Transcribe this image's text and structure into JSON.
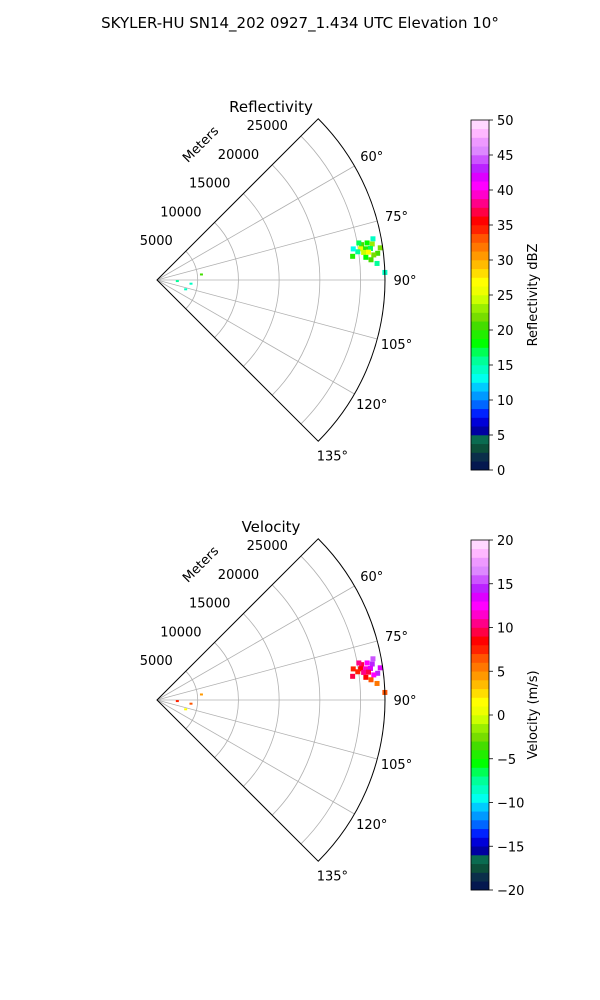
{
  "suptitle": "SKYLER-HU  SN14_202  0927_1.434 UTC Elevation 10°",
  "chart_data": [
    {
      "type": "polar-wedge",
      "title": "Reflectivity",
      "radial_label": "Meters",
      "radial_ticks": [
        5000,
        10000,
        15000,
        20000,
        25000
      ],
      "radial_tick_labels": [
        "5000",
        "10000",
        "15000",
        "20000",
        "25000"
      ],
      "rmax": 28000,
      "angle_range_deg": [
        45,
        135
      ],
      "angle_ticks_deg": [
        60,
        75,
        90,
        105,
        120,
        135
      ],
      "angle_tick_labels": [
        "60°",
        "75°",
        "90°",
        "105°",
        "120°",
        "135°"
      ],
      "grid": true,
      "colorbar": {
        "label": "Reflectivity dBZ",
        "range": [
          0,
          50
        ],
        "ticks": [
          0,
          5,
          10,
          15,
          20,
          25,
          30,
          35,
          40,
          45,
          50
        ],
        "tick_labels": [
          "0",
          "5",
          "10",
          "15",
          "20",
          "25",
          "30",
          "35",
          "40",
          "45",
          "50"
        ],
        "colors": [
          "#04184f",
          "#0a2e4a",
          "#0c4f3a",
          "#0a6b50",
          "#0000a0",
          "#0000d8",
          "#0022ff",
          "#0066ff",
          "#0099ff",
          "#00ccff",
          "#00ffee",
          "#00ffc4",
          "#00ff99",
          "#00ff55",
          "#00ff00",
          "#22ee00",
          "#44dd00",
          "#77dd00",
          "#99ee00",
          "#ccff00",
          "#eeff00",
          "#ffff00",
          "#ffdd00",
          "#ffbb00",
          "#ff9900",
          "#ff7700",
          "#ff5500",
          "#ff2200",
          "#ff0000",
          "#ff0044",
          "#ff0088",
          "#ff00cc",
          "#ff00ff",
          "#dd00ff",
          "#bb22ff",
          "#cc55ff",
          "#dd88ff",
          "#ee99ff",
          "#ffb8ff",
          "#ffd8ff"
        ]
      },
      "echoes": [
        {
          "range_m": 25500,
          "azimuth_deg": 80.2,
          "value": 21
        },
        {
          "range_m": 26200,
          "azimuth_deg": 80.0,
          "value": 18
        },
        {
          "range_m": 26800,
          "azimuth_deg": 80.5,
          "value": 23
        },
        {
          "range_m": 25300,
          "azimuth_deg": 81.3,
          "value": 25
        },
        {
          "range_m": 25900,
          "azimuth_deg": 81.5,
          "value": 19
        },
        {
          "range_m": 26500,
          "azimuth_deg": 81.6,
          "value": 17
        },
        {
          "range_m": 25600,
          "azimuth_deg": 82.4,
          "value": 24
        },
        {
          "range_m": 26200,
          "azimuth_deg": 82.5,
          "value": 27
        },
        {
          "range_m": 24900,
          "azimuth_deg": 82.0,
          "value": 15
        },
        {
          "range_m": 27300,
          "azimuth_deg": 83.1,
          "value": 20
        },
        {
          "range_m": 26800,
          "azimuth_deg": 83.4,
          "value": 22
        },
        {
          "range_m": 25800,
          "azimuth_deg": 83.8,
          "value": 18
        },
        {
          "range_m": 26400,
          "azimuth_deg": 84.6,
          "value": 21
        },
        {
          "range_m": 27100,
          "azimuth_deg": 85.7,
          "value": 16
        },
        {
          "range_m": 25200,
          "azimuth_deg": 79.6,
          "value": 17
        },
        {
          "range_m": 27000,
          "azimuth_deg": 79.2,
          "value": 14
        },
        {
          "range_m": 24400,
          "azimuth_deg": 81.0,
          "value": 13
        },
        {
          "range_m": 24200,
          "azimuth_deg": 83.1,
          "value": 19
        },
        {
          "range_m": 27700,
          "azimuth_deg": 81.8,
          "value": 22
        },
        {
          "range_m": 28000,
          "azimuth_deg": 88.1,
          "value": 14
        },
        {
          "range_m": 5500,
          "azimuth_deg": 82.9,
          "value": 20
        },
        {
          "range_m": 2500,
          "azimuth_deg": 93.0,
          "value": 16
        },
        {
          "range_m": 4200,
          "azimuth_deg": 96.2,
          "value": 14
        },
        {
          "range_m": 3700,
          "azimuth_deg": 108.0,
          "value": 14
        }
      ]
    },
    {
      "type": "polar-wedge",
      "title": "Velocity",
      "radial_label": "Meters",
      "radial_ticks": [
        5000,
        10000,
        15000,
        20000,
        25000
      ],
      "radial_tick_labels": [
        "5000",
        "10000",
        "15000",
        "20000",
        "25000"
      ],
      "rmax": 28000,
      "angle_range_deg": [
        45,
        135
      ],
      "angle_ticks_deg": [
        60,
        75,
        90,
        105,
        120,
        135
      ],
      "angle_tick_labels": [
        "60°",
        "75°",
        "90°",
        "105°",
        "120°",
        "135°"
      ],
      "grid": true,
      "colorbar": {
        "label": "Velocity (m/s)",
        "range": [
          -20,
          20
        ],
        "ticks": [
          -20,
          -15,
          -10,
          -5,
          0,
          5,
          10,
          15,
          20
        ],
        "tick_labels": [
          "−20",
          "−15",
          "−10",
          "−5",
          "0",
          "5",
          "10",
          "15",
          "20"
        ],
        "colors": [
          "#04184f",
          "#0a2e4a",
          "#0c4f3a",
          "#0a6b50",
          "#0000a0",
          "#0000d8",
          "#0022ff",
          "#0066ff",
          "#0099ff",
          "#00ccff",
          "#00ffee",
          "#00ffc4",
          "#00ff99",
          "#00ff55",
          "#00ff00",
          "#22ee00",
          "#44dd00",
          "#77dd00",
          "#99ee00",
          "#ccff00",
          "#eeff00",
          "#ffff00",
          "#ffdd00",
          "#ffbb00",
          "#ff9900",
          "#ff7700",
          "#ff5500",
          "#ff2200",
          "#ff0000",
          "#ff0044",
          "#ff0088",
          "#ff00cc",
          "#ff00ff",
          "#dd00ff",
          "#bb22ff",
          "#cc55ff",
          "#dd88ff",
          "#ee99ff",
          "#ffb8ff",
          "#ffd8ff"
        ]
      },
      "echoes": [
        {
          "range_m": 25500,
          "azimuth_deg": 80.2,
          "value": 9
        },
        {
          "range_m": 26200,
          "azimuth_deg": 80.0,
          "value": 12
        },
        {
          "range_m": 26800,
          "azimuth_deg": 80.5,
          "value": 14
        },
        {
          "range_m": 25300,
          "azimuth_deg": 81.3,
          "value": 8
        },
        {
          "range_m": 25900,
          "azimuth_deg": 81.5,
          "value": 11
        },
        {
          "range_m": 26500,
          "azimuth_deg": 81.6,
          "value": 13
        },
        {
          "range_m": 25600,
          "azimuth_deg": 82.4,
          "value": 10
        },
        {
          "range_m": 26200,
          "azimuth_deg": 82.5,
          "value": 9
        },
        {
          "range_m": 24900,
          "azimuth_deg": 82.0,
          "value": 7
        },
        {
          "range_m": 27300,
          "azimuth_deg": 83.1,
          "value": 14
        },
        {
          "range_m": 26800,
          "azimuth_deg": 83.4,
          "value": 12
        },
        {
          "range_m": 25800,
          "azimuth_deg": 83.8,
          "value": 8
        },
        {
          "range_m": 26400,
          "azimuth_deg": 84.6,
          "value": 6
        },
        {
          "range_m": 27100,
          "azimuth_deg": 85.7,
          "value": 5
        },
        {
          "range_m": 25200,
          "azimuth_deg": 79.6,
          "value": 10
        },
        {
          "range_m": 27000,
          "azimuth_deg": 79.2,
          "value": 15
        },
        {
          "range_m": 24400,
          "azimuth_deg": 81.0,
          "value": 7
        },
        {
          "range_m": 24200,
          "azimuth_deg": 83.1,
          "value": 9
        },
        {
          "range_m": 27700,
          "azimuth_deg": 81.8,
          "value": 13
        },
        {
          "range_m": 28000,
          "azimuth_deg": 88.1,
          "value": 6
        },
        {
          "range_m": 5500,
          "azimuth_deg": 82.9,
          "value": 4
        },
        {
          "range_m": 2500,
          "azimuth_deg": 93.0,
          "value": 7
        },
        {
          "range_m": 4200,
          "azimuth_deg": 96.2,
          "value": 6
        },
        {
          "range_m": 3700,
          "azimuth_deg": 108.0,
          "value": 1
        }
      ]
    }
  ]
}
